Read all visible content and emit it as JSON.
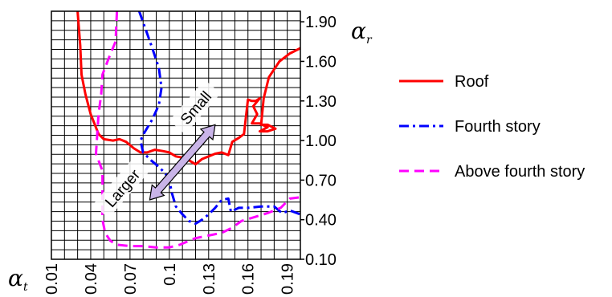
{
  "chart_data": {
    "type": "line",
    "x_axis": {
      "symbol": "α",
      "subscript": "t",
      "ticks": [
        "0.01",
        "0.04",
        "0.07",
        "0.1",
        "0.13",
        "0.16",
        "0.19"
      ],
      "range": [
        0.01,
        0.2
      ]
    },
    "y_axis": {
      "symbol": "α",
      "subscript": "r",
      "ticks": [
        "0.10",
        "0.40",
        "0.70",
        "1.00",
        "1.30",
        "1.60",
        "1.90"
      ],
      "range": [
        0.1,
        1.98
      ],
      "position": "right"
    },
    "grid": true,
    "legend_position": "right",
    "annotations": [
      {
        "text": "Small",
        "x": 0.12,
        "y": 1.25
      },
      {
        "text": "Larger",
        "x": 0.064,
        "y": 0.64
      }
    ],
    "arrow": {
      "from": [
        0.085,
        0.55
      ],
      "to": [
        0.135,
        1.12
      ],
      "color": "#c9b4e8"
    },
    "series": [
      {
        "name": "Roof",
        "color": "#ff0000",
        "style": "solid",
        "points": [
          [
            0.03,
            1.98
          ],
          [
            0.032,
            1.72
          ],
          [
            0.033,
            1.5
          ],
          [
            0.036,
            1.35
          ],
          [
            0.04,
            1.2
          ],
          [
            0.046,
            1.05
          ],
          [
            0.05,
            1.01
          ],
          [
            0.057,
            1.0
          ],
          [
            0.062,
            1.01
          ],
          [
            0.067,
            0.99
          ],
          [
            0.073,
            0.94
          ],
          [
            0.078,
            0.91
          ],
          [
            0.083,
            0.91
          ],
          [
            0.089,
            0.93
          ],
          [
            0.095,
            0.92
          ],
          [
            0.1,
            0.91
          ],
          [
            0.105,
            0.88
          ],
          [
            0.11,
            0.87
          ],
          [
            0.115,
            0.85
          ],
          [
            0.12,
            0.82
          ],
          [
            0.125,
            0.86
          ],
          [
            0.13,
            0.88
          ],
          [
            0.135,
            0.9
          ],
          [
            0.14,
            0.91
          ],
          [
            0.145,
            0.89
          ],
          [
            0.148,
            0.99
          ],
          [
            0.153,
            1.02
          ],
          [
            0.157,
            1.05
          ],
          [
            0.16,
            1.31
          ],
          [
            0.163,
            1.3
          ],
          [
            0.166,
            1.3
          ],
          [
            0.169,
            1.32
          ],
          [
            0.164,
            1.26
          ],
          [
            0.167,
            1.2
          ],
          [
            0.163,
            1.13
          ],
          [
            0.169,
            1.13
          ],
          [
            0.175,
            1.1
          ],
          [
            0.169,
            1.07
          ],
          [
            0.175,
            1.07
          ],
          [
            0.181,
            1.09
          ],
          [
            0.175,
            1.12
          ],
          [
            0.17,
            1.12
          ],
          [
            0.172,
            1.32
          ],
          [
            0.176,
            1.48
          ],
          [
            0.184,
            1.6
          ],
          [
            0.192,
            1.66
          ],
          [
            0.2,
            1.7
          ]
        ]
      },
      {
        "name": "Fourth story",
        "color": "#0000ff",
        "style": "dashdot",
        "points": [
          [
            0.077,
            1.98
          ],
          [
            0.082,
            1.84
          ],
          [
            0.087,
            1.7
          ],
          [
            0.092,
            1.55
          ],
          [
            0.094,
            1.4
          ],
          [
            0.092,
            1.27
          ],
          [
            0.087,
            1.16
          ],
          [
            0.081,
            1.06
          ],
          [
            0.078,
            1.0
          ],
          [
            0.08,
            0.91
          ],
          [
            0.086,
            0.85
          ],
          [
            0.092,
            0.8
          ],
          [
            0.097,
            0.75
          ],
          [
            0.1,
            0.7
          ],
          [
            0.102,
            0.6
          ],
          [
            0.105,
            0.5
          ],
          [
            0.11,
            0.44
          ],
          [
            0.115,
            0.39
          ],
          [
            0.12,
            0.37
          ],
          [
            0.125,
            0.4
          ],
          [
            0.13,
            0.44
          ],
          [
            0.135,
            0.49
          ],
          [
            0.14,
            0.55
          ],
          [
            0.145,
            0.56
          ],
          [
            0.147,
            0.46
          ],
          [
            0.153,
            0.49
          ],
          [
            0.16,
            0.49
          ],
          [
            0.17,
            0.5
          ],
          [
            0.18,
            0.5
          ],
          [
            0.186,
            0.45
          ],
          [
            0.192,
            0.47
          ],
          [
            0.2,
            0.44
          ]
        ]
      },
      {
        "name": "Above fourth story",
        "color": "#ff00ff",
        "style": "dashed",
        "points": [
          [
            0.06,
            1.98
          ],
          [
            0.059,
            1.75
          ],
          [
            0.054,
            1.63
          ],
          [
            0.049,
            1.5
          ],
          [
            0.048,
            1.35
          ],
          [
            0.046,
            1.2
          ],
          [
            0.045,
            1.05
          ],
          [
            0.044,
            0.9
          ],
          [
            0.049,
            0.77
          ],
          [
            0.049,
            0.63
          ],
          [
            0.049,
            0.5
          ],
          [
            0.049,
            0.4
          ],
          [
            0.051,
            0.3
          ],
          [
            0.055,
            0.24
          ],
          [
            0.06,
            0.21
          ],
          [
            0.07,
            0.2
          ],
          [
            0.08,
            0.2
          ],
          [
            0.09,
            0.19
          ],
          [
            0.1,
            0.19
          ],
          [
            0.108,
            0.21
          ],
          [
            0.115,
            0.24
          ],
          [
            0.12,
            0.26
          ],
          [
            0.13,
            0.28
          ],
          [
            0.14,
            0.3
          ],
          [
            0.148,
            0.34
          ],
          [
            0.155,
            0.39
          ],
          [
            0.165,
            0.42
          ],
          [
            0.175,
            0.45
          ],
          [
            0.185,
            0.49
          ],
          [
            0.192,
            0.56
          ],
          [
            0.2,
            0.57
          ]
        ]
      }
    ]
  }
}
